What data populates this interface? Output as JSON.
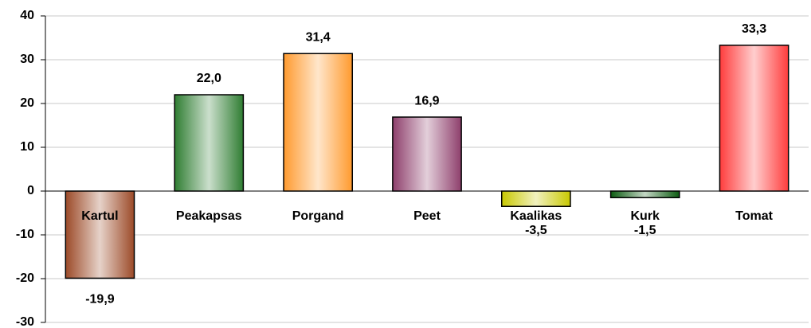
{
  "chart_data": {
    "type": "bar",
    "categories": [
      "Kartul",
      "Peakapsas",
      "Porgand",
      "Peet",
      "Kaalikas",
      "Kurk",
      "Tomat"
    ],
    "values": [
      -19.9,
      22.0,
      31.4,
      16.9,
      -3.5,
      -1.5,
      33.3
    ],
    "value_labels": [
      "-19,9",
      "22,0",
      "31,4",
      "16,9",
      "-3,5",
      "-1,5",
      "33,3"
    ],
    "colors": [
      "#9c4a28",
      "#2f7d32",
      "#ff9a2e",
      "#8e3f6c",
      "#c8c800",
      "#0d5c12",
      "#ff3c3c"
    ],
    "ylim": [
      -30,
      40
    ],
    "yticks": [
      -30,
      -20,
      -10,
      0,
      10,
      20,
      30,
      40
    ],
    "grid": true
  }
}
